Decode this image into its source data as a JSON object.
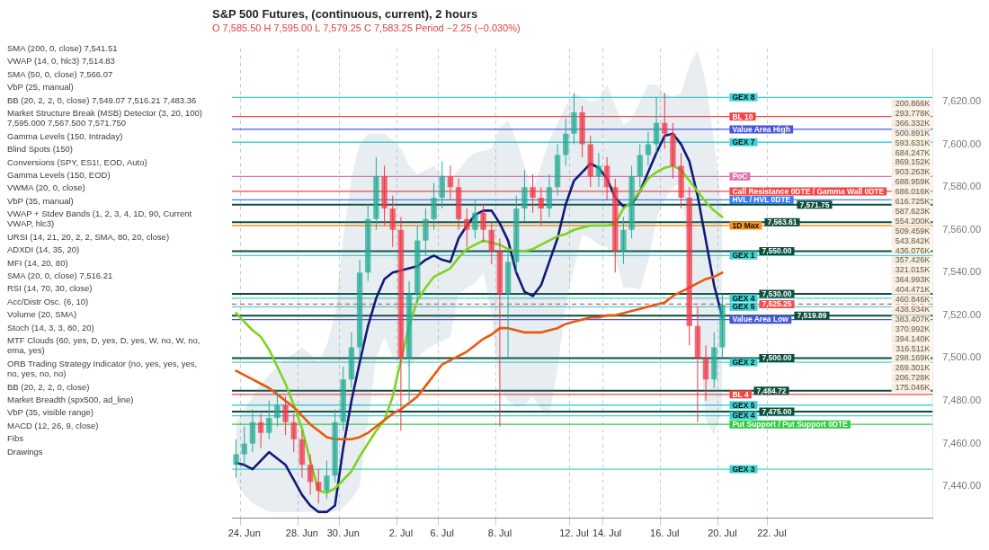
{
  "chart_data": [
    {
      "type": "other",
      "annotations": [
        "SMA (200, 0, close)  7,541.51",
        "VWAP (14, 0, hlc3)  7,514.83",
        "SMA (50, 0, close)  7,566.07",
        "VbP (25, manual)",
        "BB (20, 2, 2, 0, close)  7,549.07 7,516.21 7,483.36",
        "Market Structure Break (MSB) Detector (3, 20, 100)  7,595.000 7,567.500 7,571.750",
        "Gamma Levels (150, Intraday)",
        "Blind Spots (150)",
        "Conversions (SPY, ES1!, EOD, Auto)",
        "Gamma Levels (150, EOD)",
        "VWMA (20, 0, close)",
        "VbP (35, manual)",
        "VWAP + Stdev Bands (1, 2, 3, 4, 1D, 90, Current VWAP, hlc3)",
        "URSI (14, 21, 20, 2, 2, SMA, 80, 20, close)",
        "ADXDI (14, 35, 20)",
        "MFI (14, 20, 80)",
        "SMA (20, 0, close)  7,516.21",
        "RSI (14, 70, 30, close)",
        "Acc/Distr Osc. (6, 10)",
        "Volume (20, SMA)",
        "Stoch (14, 3, 3, 80, 20)",
        "MTF Clouds (60, yes, D, yes, D, yes, W, no, W, no, ema, yes)",
        "ORB Trading Strategy Indicator (no, yes, yes, yes, no, yes, no, no)",
        "BB (20, 2, 2, 0, close)",
        "Market Breadth (spx500, ad_line)",
        "VbP (35, visible range)",
        "MACD (12, 26, 9, close)",
        "Fibs",
        "Drawings"
      ]
    },
    {
      "type": "candlestick",
      "title": "S&P 500 Futures, (continuous, current), 2 hours",
      "subtitle": "O 7,585.50 H 7,595.00 L 7,579.25 C 7,583.25 Period −2.25 (−0.030%)",
      "categories": [
        null,
        "24. Jun",
        null,
        null,
        null,
        null,
        null,
        null,
        "28. Jun",
        null,
        null,
        null,
        null,
        "30. Jun",
        null,
        null,
        null,
        null,
        null,
        null,
        "2. Jul",
        null,
        null,
        null,
        null,
        "6. Jul",
        null,
        null,
        null,
        null,
        null,
        null,
        "8. Jul",
        null,
        null,
        null,
        null,
        null,
        null,
        null,
        null,
        "12. Jul",
        null,
        null,
        null,
        "14. Jul",
        null,
        null,
        null,
        null,
        null,
        null,
        "16. Jul",
        null,
        null,
        null,
        null,
        null,
        null,
        "20. Jul",
        null,
        null,
        null,
        null,
        null,
        "22. Jul",
        null,
        null,
        null,
        null,
        null,
        null,
        null,
        null,
        null,
        null,
        null,
        null,
        null,
        null,
        null,
        null,
        null,
        null,
        null
      ],
      "ohlc": [
        [
          7450,
          7462,
          7444,
          7455
        ],
        [
          7455,
          7468,
          7450,
          7460
        ],
        [
          7460,
          7476,
          7456,
          7470
        ],
        [
          7470,
          7474,
          7458,
          7465
        ],
        [
          7465,
          7480,
          7462,
          7472
        ],
        [
          7472,
          7484,
          7468,
          7478
        ],
        [
          7478,
          7482,
          7464,
          7470
        ],
        [
          7470,
          7474,
          7456,
          7462
        ],
        [
          7462,
          7466,
          7444,
          7450
        ],
        [
          7450,
          7455,
          7436,
          7442
        ],
        [
          7442,
          7448,
          7432,
          7438
        ],
        [
          7438,
          7452,
          7434,
          7445
        ],
        [
          7445,
          7476,
          7442,
          7470
        ],
        [
          7470,
          7496,
          7466,
          7490
        ],
        [
          7490,
          7512,
          7486,
          7505
        ],
        [
          7505,
          7546,
          7500,
          7540
        ],
        [
          7540,
          7572,
          7536,
          7565
        ],
        [
          7565,
          7594,
          7560,
          7585
        ],
        [
          7585,
          7590,
          7562,
          7570
        ],
        [
          7570,
          7576,
          7552,
          7560
        ],
        [
          7560,
          7566,
          7466,
          7500
        ],
        [
          7500,
          7536,
          7480,
          7530
        ],
        [
          7530,
          7562,
          7526,
          7555
        ],
        [
          7555,
          7570,
          7548,
          7565
        ],
        [
          7565,
          7582,
          7560,
          7575
        ],
        [
          7575,
          7592,
          7570,
          7585
        ],
        [
          7585,
          7590,
          7574,
          7580
        ],
        [
          7580,
          7584,
          7560,
          7565
        ],
        [
          7565,
          7570,
          7552,
          7560
        ],
        [
          7560,
          7574,
          7556,
          7568
        ],
        [
          7568,
          7572,
          7554,
          7560
        ],
        [
          7560,
          7564,
          7544,
          7550
        ],
        [
          7550,
          7556,
          7468,
          7530
        ],
        [
          7530,
          7550,
          7500,
          7545
        ],
        [
          7545,
          7576,
          7540,
          7570
        ],
        [
          7570,
          7588,
          7564,
          7580
        ],
        [
          7580,
          7586,
          7568,
          7575
        ],
        [
          7575,
          7580,
          7562,
          7570
        ],
        [
          7570,
          7586,
          7566,
          7580
        ],
        [
          7580,
          7600,
          7576,
          7595
        ],
        [
          7595,
          7612,
          7590,
          7605
        ],
        [
          7605,
          7624,
          7600,
          7615
        ],
        [
          7615,
          7618,
          7594,
          7600
        ],
        [
          7600,
          7604,
          7580,
          7585
        ],
        [
          7585,
          7596,
          7580,
          7590
        ],
        [
          7590,
          7594,
          7574,
          7580
        ],
        [
          7580,
          7584,
          7540,
          7550
        ],
        [
          7550,
          7566,
          7544,
          7560
        ],
        [
          7560,
          7590,
          7556,
          7585
        ],
        [
          7585,
          7600,
          7580,
          7595
        ],
        [
          7595,
          7606,
          7590,
          7600
        ],
        [
          7600,
          7622,
          7596,
          7610
        ],
        [
          7610,
          7624,
          7598,
          7605
        ],
        [
          7605,
          7610,
          7584,
          7590
        ],
        [
          7590,
          7596,
          7570,
          7575
        ],
        [
          7575,
          7580,
          7506,
          7515
        ],
        [
          7515,
          7524,
          7470,
          7500
        ],
        [
          7500,
          7506,
          7480,
          7490
        ],
        [
          7490,
          7512,
          7486,
          7505
        ],
        [
          7505,
          7530,
          7500,
          7525
        ],
        null,
        null,
        null,
        null,
        null,
        null,
        null,
        null,
        null,
        null,
        null,
        null,
        null,
        null,
        null,
        null,
        null,
        null,
        null,
        null,
        null,
        null,
        null,
        null,
        null
      ],
      "colors": [
        "#22ab94",
        "#22ab94",
        "#22ab94",
        "#f23645",
        "#22ab94",
        "#22ab94",
        "#f23645",
        "#f23645",
        "#f23645",
        "#f23645",
        "#f23645",
        "#22ab94",
        "#22ab94",
        "#22ab94",
        "#22ab94",
        "#22ab94",
        "#22ab94",
        "#22ab94",
        "#f23645",
        "#f23645",
        "#f23645",
        "#22ab94",
        "#22ab94",
        "#22ab94",
        "#22ab94",
        "#22ab94",
        "#f23645",
        "#f23645",
        "#f23645",
        "#22ab94",
        "#f23645",
        "#f23645",
        "#f23645",
        "#22ab94",
        "#22ab94",
        "#22ab94",
        "#f23645",
        "#f23645",
        "#22ab94",
        "#22ab94",
        "#22ab94",
        "#22ab94",
        "#f23645",
        "#f23645",
        "#22ab94",
        "#f23645",
        "#f23645",
        "#22ab94",
        "#22ab94",
        "#22ab94",
        "#22ab94",
        "#22ab94",
        "#f23645",
        "#f23645",
        "#f23645",
        "#f23645",
        "#f23645",
        "#f23645",
        "#22ab94",
        "#22ab94",
        null,
        null,
        null,
        null,
        null,
        null,
        null,
        null,
        null,
        null,
        null,
        null,
        null,
        null,
        null,
        null,
        null,
        null,
        null,
        null,
        null,
        null,
        null,
        null,
        null
      ],
      "series": [
        {
          "type": "line",
          "color": "#e8590c",
          "values": [
            7494,
            7492,
            7490,
            7488,
            7486,
            7483,
            7480,
            7477,
            7473,
            7469,
            7466,
            7463,
            7462,
            7462,
            7462,
            7463,
            7465,
            7468,
            7471,
            7474,
            7476,
            7479,
            7482,
            7487,
            7492,
            7497,
            7499,
            7501,
            7503,
            7506,
            7509,
            7511,
            7514,
            7514,
            7513,
            7512,
            7512,
            7512,
            7513,
            7514,
            7516,
            7517,
            7518,
            7519,
            7519,
            7520,
            7520,
            7521,
            7522,
            7523,
            7524,
            7525,
            7526,
            7529,
            7531,
            7533,
            7535,
            7537,
            7538,
            7540,
            null,
            null,
            null,
            null,
            null,
            null,
            null,
            null,
            null,
            null,
            null,
            null,
            null,
            null,
            null,
            null,
            null,
            null,
            null,
            null,
            null,
            null,
            null,
            null,
            null
          ]
        },
        {
          "type": "line",
          "color": "#7ed321",
          "values": [
            7521,
            7517,
            7513,
            7510,
            7504,
            7496,
            7488,
            7478,
            7467,
            7452,
            7438,
            7437,
            7439,
            7443,
            7447,
            7454,
            7460,
            7466,
            7471,
            7482,
            7499,
            7515,
            7527,
            7533,
            7538,
            7540,
            7542,
            7547,
            7551,
            7553,
            7555,
            7554,
            7553,
            7551,
            7550,
            7550,
            7551,
            7553,
            7555,
            7557,
            7558,
            7560,
            7561,
            7562,
            7562,
            7562,
            7563,
            7570,
            7573,
            7578,
            7584,
            7587,
            7589,
            7590,
            7588,
            7583,
            7578,
            7573,
            7569,
            7566,
            null,
            null,
            null,
            null,
            null,
            null,
            null,
            null,
            null,
            null,
            null,
            null,
            null,
            null,
            null,
            null,
            null,
            null,
            null,
            null,
            null,
            null,
            null,
            null,
            null
          ]
        },
        {
          "type": "line",
          "color": "#101a78",
          "values": [
            7451,
            7450,
            7448,
            7452,
            7456,
            7453,
            7450,
            7443,
            7436,
            7431,
            7428,
            7428,
            7431,
            7458,
            7480,
            7498,
            7515,
            7528,
            7537,
            7540,
            7541,
            7542,
            7543,
            7546,
            7548,
            7546,
            7545,
            7556,
            7562,
            7567,
            7569,
            7569,
            7563,
            7555,
            7540,
            7531,
            7529,
            7534,
            7545,
            7556,
            7572,
            7583,
            7587,
            7591,
            7589,
            7584,
            7575,
            7571,
            7572,
            7578,
            7587,
            7596,
            7604,
            7605,
            7600,
            7592,
            7576,
            7555,
            7534,
            7519,
            null,
            null,
            null,
            null,
            null,
            null,
            null,
            null,
            null,
            null,
            null,
            null,
            null,
            null,
            null,
            null,
            null,
            null,
            null,
            null,
            null,
            null,
            null,
            null,
            null
          ],
          "upper": [
            7470,
            7476,
            7482,
            7488,
            7492,
            7496,
            7500,
            7502,
            7505,
            7502,
            7498,
            7506,
            7520,
            7556,
            7585,
            7600,
            7605,
            7605,
            7605,
            7602,
            7598,
            7590,
            7586,
            7588,
            7590,
            7586,
            7584,
            7588,
            7593,
            7596,
            7597,
            7598,
            7608,
            7611,
            7602,
            7590,
            7578,
            7590,
            7602,
            7610,
            7618,
            7624,
            7622,
            7620,
            7621,
            7628,
            7618,
            7609,
            7612,
            7620,
            7628,
            7628,
            7624,
            7622,
            7624,
            7637,
            7644,
            7629,
            7601,
            7570,
            null,
            null,
            null,
            null,
            null,
            null,
            null,
            null,
            null,
            null,
            null,
            null,
            null,
            null,
            null,
            null,
            null,
            null,
            null,
            null,
            null,
            null,
            null,
            null,
            null
          ],
          "lower": [
            7442,
            7436,
            7432,
            7430,
            7428,
            7428,
            7428,
            7428,
            7428,
            7428,
            7428,
            7428,
            7428,
            7430,
            7434,
            7440,
            7470,
            7500,
            7510,
            7500,
            7498,
            7496,
            7500,
            7504,
            7506,
            7508,
            7510,
            7530,
            7533,
            7535,
            7540,
            7520,
            7485,
            7480,
            7477,
            7478,
            7482,
            7476,
            7473,
            7495,
            7525,
            7542,
            7558,
            7556,
            7553,
            7552,
            7547,
            7533,
            7533,
            7532,
            7545,
            7565,
            7574,
            7580,
            7582,
            7545,
            7515,
            7471,
            7464,
            7476,
            null,
            null,
            null,
            null,
            null,
            null,
            null,
            null,
            null,
            null,
            null,
            null,
            null,
            null,
            null,
            null,
            null,
            null,
            null,
            null,
            null,
            null,
            null,
            null,
            null
          ]
        }
      ],
      "ylim": [
        7425,
        7645
      ],
      "yticks": [
        {
          "value": 7440,
          "label": "7,440.00"
        },
        {
          "value": 7460,
          "label": "7,460.00"
        },
        {
          "value": 7480,
          "label": "7,480.00"
        },
        {
          "value": 7500,
          "label": "7,500.00"
        },
        {
          "value": 7520,
          "label": "7,520.00"
        },
        {
          "value": 7540,
          "label": "7,540.00"
        },
        {
          "value": 7560,
          "label": "7,560.00"
        },
        {
          "value": 7580,
          "label": "7,580.00"
        },
        {
          "value": 7600,
          "label": "7,600.00"
        },
        {
          "value": 7620,
          "label": "7,620.00"
        }
      ],
      "grid": "x",
      "ref_lines": [
        {
          "axis": "y",
          "value": 7622,
          "label": "GEX 8",
          "color": "#40d3d3"
        },
        {
          "axis": "y",
          "value": 7613,
          "label": "BL 10",
          "color": "#f44545"
        },
        {
          "axis": "y",
          "value": 7607,
          "label": "Value Area High",
          "color": "#4655e0"
        },
        {
          "axis": "y",
          "value": 7601,
          "label": "GEX 7",
          "color": "#40d3d3"
        },
        {
          "axis": "y",
          "value": 7585,
          "label": "PoC",
          "color": "#e070b0"
        },
        {
          "axis": "y",
          "value": 7578,
          "label": "Call Resistance 0DTE / Gamma Wall 0DTE",
          "color": "#f44545"
        },
        {
          "axis": "y",
          "value": 7574,
          "label": "HVL / HVL 0DTE",
          "color": "#3a7ff0"
        },
        {
          "axis": "y",
          "value": 7562,
          "label": "1D Max",
          "color": "#f7931e"
        },
        {
          "axis": "y",
          "value": 7548,
          "label": "GEX 1",
          "color": "#40d3d3"
        },
        {
          "axis": "y",
          "value": 7528,
          "label": "GEX 4",
          "color": "#40d3d3"
        },
        {
          "axis": "y",
          "value": 7524,
          "label": "GEX 5",
          "color": "#40d3d3"
        },
        {
          "axis": "y",
          "value": 7518,
          "label": "Value Area Low",
          "color": "#4655e0"
        },
        {
          "axis": "y",
          "value": 7498,
          "label": "GEX 2",
          "color": "#40d3d3"
        },
        {
          "axis": "y",
          "value": 7483,
          "label": "BL 4",
          "color": "#f44545"
        },
        {
          "axis": "y",
          "value": 7478,
          "label": "GEX 5",
          "color": "#40d3d3"
        },
        {
          "axis": "y",
          "value": 7473,
          "label": "GEX 4",
          "color": "#40d3d3"
        },
        {
          "axis": "y",
          "value": 7469,
          "label": "Put Support / Put Support 0DTE",
          "color": "#2ecc40"
        },
        {
          "axis": "y",
          "value": 7448,
          "label": "GEX 3",
          "color": "#40d3d3"
        },
        {
          "axis": "y",
          "value": 7571.75,
          "label": "7,571.75",
          "color": "#0d4d3a"
        },
        {
          "axis": "y",
          "value": 7563.61,
          "label": "7,563.61",
          "color": "#0d4d3a"
        },
        {
          "axis": "y",
          "value": 7550,
          "label": "7,550.00",
          "color": "#0d4d3a"
        },
        {
          "axis": "y",
          "value": 7530,
          "label": "7,530.00",
          "color": "#0d4d3a"
        },
        {
          "axis": "y",
          "value": 7519.89,
          "label": "7,519.89",
          "color": "#0d4d3a"
        },
        {
          "axis": "y",
          "value": 7500,
          "label": "7,500.00",
          "color": "#0d4d3a"
        },
        {
          "axis": "y",
          "value": 7484.72,
          "label": "7,484.72",
          "color": "#0d4d3a"
        },
        {
          "axis": "y",
          "value": 7475,
          "label": "7,475.00",
          "color": "#0d4d3a"
        },
        {
          "axis": "y",
          "value": 7525.25,
          "label": "7,525.25",
          "color": "#f05050",
          "line_style": "dashed"
        }
      ],
      "annotations": [
        "200.866K",
        "293.778K",
        "366.332K",
        "500.891K",
        "593.631K",
        "684.247K",
        "869.152K",
        "903.263K",
        "688.959K",
        "686.016K",
        "616.725K",
        "587.623K",
        "554.200K",
        "509.459K",
        "543.842K",
        "436.076K",
        "357.426K",
        "321.015K",
        "364.993K",
        "404.471K",
        "460.846K",
        "438.934K",
        "383.407K",
        "370.992K",
        "394.140K",
        "316.511K",
        "298.169K",
        "269.301K",
        "206.728K",
        "175.046K"
      ]
    }
  ]
}
